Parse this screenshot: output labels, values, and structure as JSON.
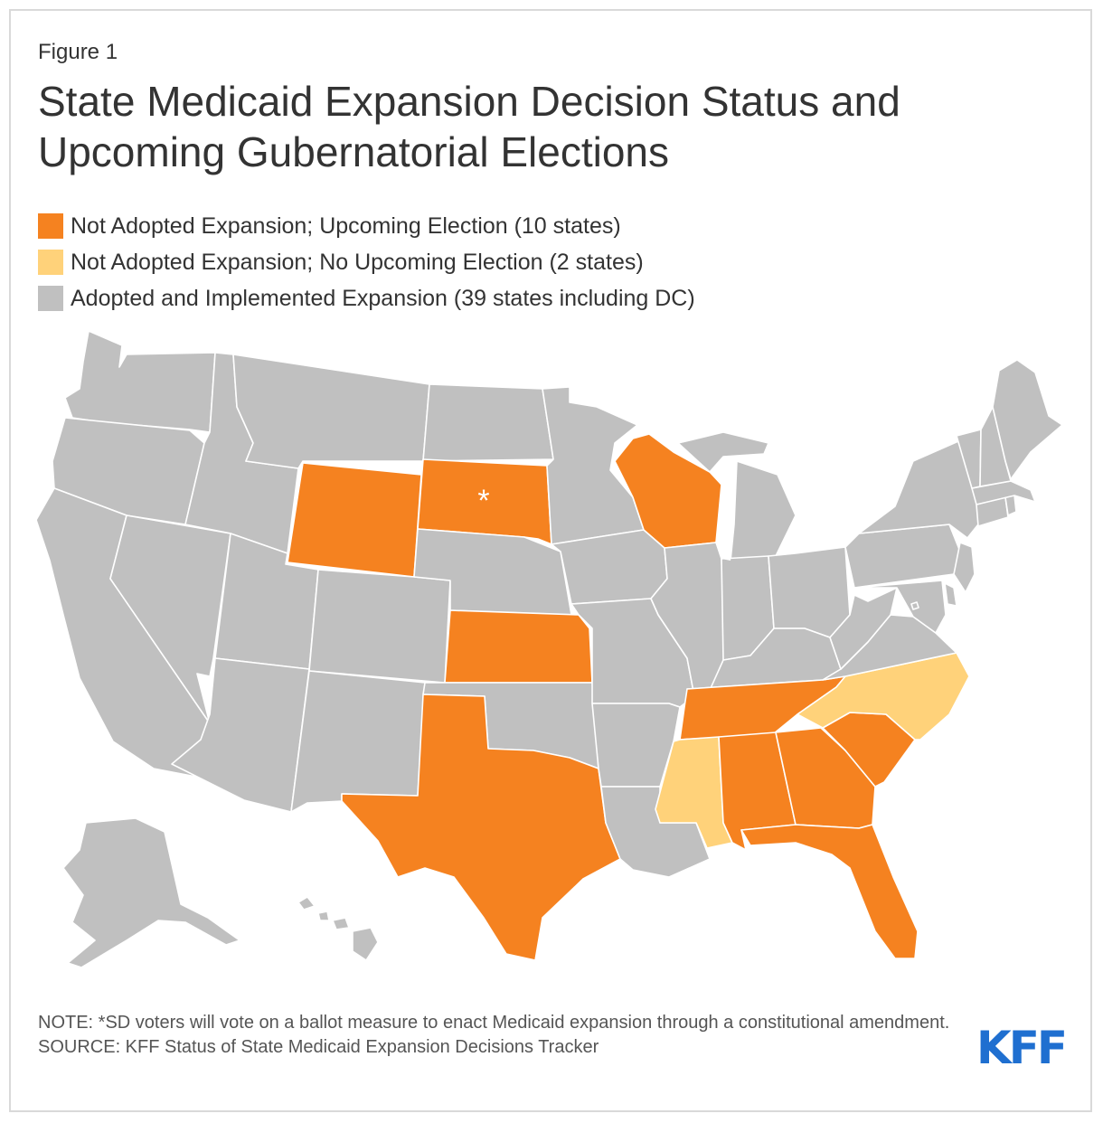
{
  "figure_label": "Figure 1",
  "title": "State Medicaid Expansion Decision Status and Upcoming Gubernatorial Elections",
  "colors": {
    "not_adopted_election": "#f58220",
    "not_adopted_no_election": "#ffd27a",
    "adopted": "#c0c0c0",
    "brand": "#1f6fd0"
  },
  "legend": [
    {
      "key": "not_adopted_election",
      "label": "Not Adopted Expansion; Upcoming Election (10 states)"
    },
    {
      "key": "not_adopted_no_election",
      "label": "Not Adopted Expansion; No Upcoming Election (2 states)"
    },
    {
      "key": "adopted",
      "label": "Adopted and Implemented Expansion (39 states including DC)"
    }
  ],
  "map": {
    "sd_annotation": "*",
    "status": {
      "not_adopted_election": [
        "WY",
        "SD",
        "KS",
        "TX",
        "WI",
        "TN",
        "AL",
        "GA",
        "SC",
        "FL"
      ],
      "not_adopted_no_election": [
        "MS",
        "NC"
      ],
      "adopted": [
        "WA",
        "OR",
        "CA",
        "NV",
        "ID",
        "MT",
        "UT",
        "AZ",
        "CO",
        "NM",
        "ND",
        "NE",
        "OK",
        "MN",
        "IA",
        "MO",
        "AR",
        "LA",
        "IL",
        "MI",
        "IN",
        "KY",
        "OH",
        "WV",
        "VA",
        "PA",
        "NY",
        "ME",
        "VT",
        "NH",
        "MA",
        "CT",
        "RI",
        "NJ",
        "DE",
        "MD",
        "DC",
        "AK",
        "HI"
      ]
    }
  },
  "note": "NOTE: *SD voters will vote on a ballot measure to enact Medicaid expansion through a constitutional amendment.",
  "source": "SOURCE: KFF Status of State Medicaid Expansion Decisions Tracker",
  "logo": "KFF"
}
